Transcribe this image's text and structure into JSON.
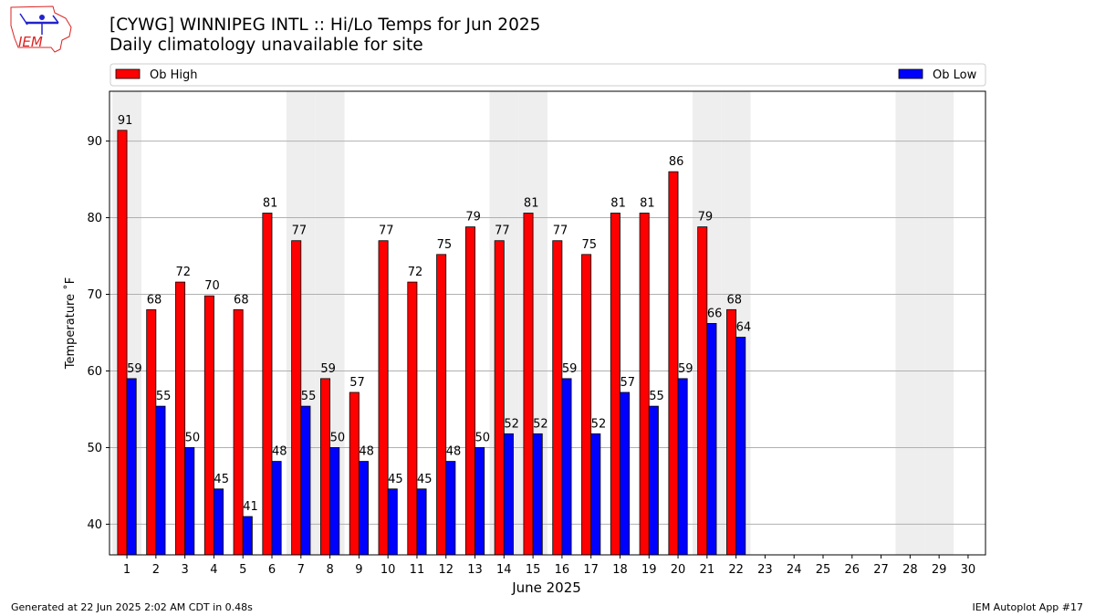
{
  "title_line1": "[CYWG] WINNIPEG INTL :: Hi/Lo Temps for Jun 2025",
  "title_line2": "Daily climatology unavailable for site",
  "logo_text": "IEM",
  "footer_left": "Generated at 22 Jun 2025 2:02 AM CDT in 0.48s",
  "footer_right": "IEM Autoplot App #17",
  "colors": {
    "high": "#ff0000",
    "low": "#0000ff",
    "weekend": "#eeeeee",
    "grid": "#b0b0b0"
  },
  "chart_data": {
    "type": "bar",
    "xlabel": "June 2025",
    "ylabel": "Temperature ˚F",
    "ylim": [
      36,
      96.5
    ],
    "yticks": [
      40,
      50,
      60,
      70,
      80,
      90
    ],
    "grid": "horizontal",
    "legend_placement": "top",
    "categories": [
      "1",
      "2",
      "3",
      "4",
      "5",
      "6",
      "7",
      "8",
      "9",
      "10",
      "11",
      "12",
      "13",
      "14",
      "15",
      "16",
      "17",
      "18",
      "19",
      "20",
      "21",
      "22",
      "23",
      "24",
      "25",
      "26",
      "27",
      "28",
      "29",
      "30"
    ],
    "weekend_days": [
      1,
      7,
      8,
      14,
      15,
      21,
      22,
      28,
      29
    ],
    "series": [
      {
        "name": "Ob High",
        "color": "#ff0000",
        "values": [
          91.4,
          68,
          71.6,
          69.8,
          68,
          80.6,
          77,
          59,
          57.2,
          77,
          71.6,
          75.2,
          78.8,
          77,
          80.6,
          77,
          75.2,
          80.6,
          80.6,
          86,
          78.8,
          68,
          null,
          null,
          null,
          null,
          null,
          null,
          null,
          null
        ],
        "labels": [
          "91",
          "68",
          "72",
          "70",
          "68",
          "81",
          "77",
          "59",
          "57",
          "77",
          "72",
          "75",
          "79",
          "77",
          "81",
          "77",
          "75",
          "81",
          "81",
          "86",
          "79",
          "68",
          "",
          "",
          "",
          "",
          "",
          "",
          "",
          ""
        ]
      },
      {
        "name": "Ob Low",
        "color": "#0000ff",
        "values": [
          59,
          55.4,
          50,
          44.6,
          41,
          48.2,
          55.4,
          50,
          48.2,
          44.6,
          44.6,
          48.2,
          50,
          51.8,
          51.8,
          59,
          51.8,
          57.2,
          55.4,
          59,
          66.2,
          64.4,
          null,
          null,
          null,
          null,
          null,
          null,
          null,
          null
        ],
        "labels": [
          "59",
          "55",
          "50",
          "45",
          "41",
          "48",
          "55",
          "50",
          "48",
          "45",
          "45",
          "48",
          "50",
          "52",
          "52",
          "59",
          "52",
          "57",
          "55",
          "59",
          "66",
          "64",
          "",
          "",
          "",
          "",
          "",
          "",
          "",
          ""
        ]
      }
    ]
  }
}
